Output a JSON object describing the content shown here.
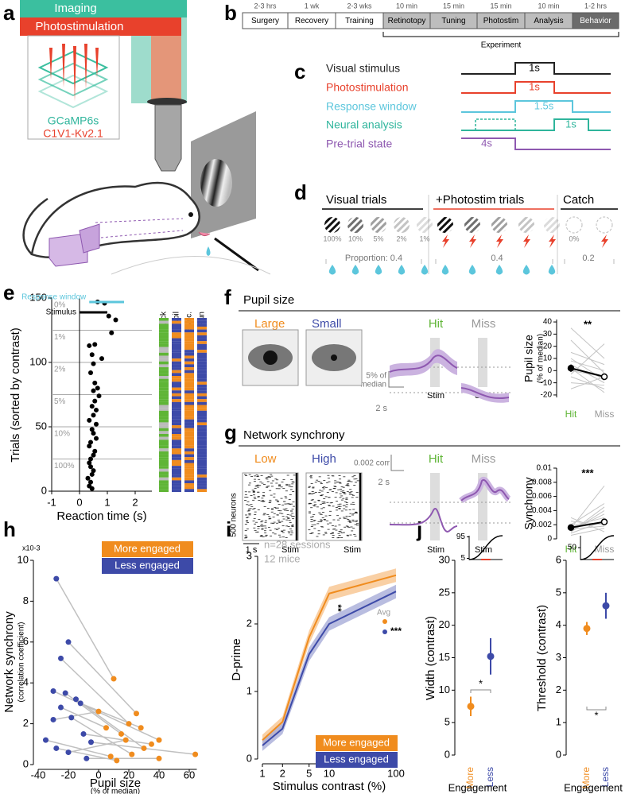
{
  "panels": {
    "a": {
      "label": "a",
      "imaging": "Imaging",
      "photostim": "Photostimulation",
      "indicator": "GCaMP6s",
      "opsin": "C1V1-Kv2.1"
    },
    "b": {
      "label": "b",
      "stages": [
        {
          "duration": "2-3 hrs",
          "name": "Surgery"
        },
        {
          "duration": "1 wk",
          "name": "Recovery"
        },
        {
          "duration": "2-3 wks",
          "name": "Training"
        },
        {
          "duration": "10 min",
          "name": "Retinotopy"
        },
        {
          "duration": "15 min",
          "name": "Tuning"
        },
        {
          "duration": "15 min",
          "name": "Photostim"
        },
        {
          "duration": "10 min",
          "name": "Analysis"
        },
        {
          "duration": "1-2 hrs",
          "name": "Behavior"
        }
      ],
      "experiment": "Experiment"
    },
    "c": {
      "label": "c",
      "rows": [
        {
          "name": "Visual stimulus",
          "duration": "1s",
          "color": "#222222"
        },
        {
          "name": "Photostimulation",
          "duration": "1s",
          "color": "#e8412c"
        },
        {
          "name": "Response window",
          "duration": "1.5s",
          "color": "#5cc6dc"
        },
        {
          "name": "Neural analysis",
          "duration": "1s",
          "color": "#2fb59c"
        },
        {
          "name": "Pre-trial state",
          "duration": "4s",
          "color": "#8e58b0"
        }
      ]
    },
    "d": {
      "label": "d",
      "groups": [
        {
          "title": "Visual trials",
          "proportion": "Proportion: 0.4",
          "contrasts": [
            "100%",
            "10%",
            "5%",
            "2%",
            "1%"
          ]
        },
        {
          "title": "+Photostim trials",
          "proportion": "0.4"
        },
        {
          "title": "Catch",
          "proportion": "0.2",
          "contrasts": [
            "0%"
          ]
        }
      ]
    },
    "e": {
      "label": "e"
    },
    "f": {
      "label": "f",
      "title": "Pupil size",
      "low": "Large",
      "high": "Small",
      "hit": "Hit",
      "miss": "Miss",
      "scale_y": [
        "5% of",
        "median"
      ],
      "scale_x": "2 s",
      "stim": [
        "Stim",
        "Stim"
      ]
    },
    "g": {
      "label": "g",
      "title": "Network synchrony",
      "low": "Low",
      "high": "High",
      "hit": "Hit",
      "miss": "Miss",
      "raster_scale_y": "500 neurons",
      "raster_scale_x": "1 s",
      "raster_stim": [
        "Stim",
        "Stim"
      ],
      "scale_y": "0.002 corr",
      "scale_x": "2 s",
      "stim": [
        "Stim",
        "Stim"
      ]
    },
    "h": {
      "label": "h"
    },
    "i": {
      "label": "i"
    },
    "j": {
      "label": "j"
    }
  },
  "chart_data": [
    {
      "type": "scatter",
      "xlabel": "Reaction time (s)",
      "ylabel": "Trials (sorted by contrast)",
      "xlim": [
        -1,
        2.6
      ],
      "ylim": [
        0,
        150
      ],
      "xticks": [
        -1,
        0,
        1,
        2
      ],
      "yticks": [
        0,
        50,
        100,
        150
      ],
      "groups": [
        {
          "label": "0%",
          "from": 125
        },
        {
          "label": "1%",
          "from": 100
        },
        {
          "label": "2%",
          "from": 75
        },
        {
          "label": "5%",
          "from": 50
        },
        {
          "label": "10%",
          "from": 25
        },
        {
          "label": "100%",
          "from": 0
        }
      ],
      "legend": [
        {
          "name": "Response window",
          "color": "#5cc6dc",
          "range": [
            0.35,
            1.6
          ]
        },
        {
          "name": "Stimulus",
          "color": "#000000",
          "range": [
            0,
            1
          ]
        }
      ],
      "columns": [
        "Lick",
        "Pupil",
        "Sync.",
        "Run"
      ],
      "color": "#000000",
      "x": [
        0.65,
        0.9,
        1.05,
        1.3,
        1.15,
        0.35,
        0.55,
        0.45,
        0.8,
        0.5,
        0.4,
        0.55,
        0.65,
        0.5,
        0.7,
        0.55,
        0.45,
        0.6,
        0.5,
        0.35,
        0.6,
        0.45,
        0.5,
        0.6,
        0.4,
        0.35,
        0.55,
        0.5,
        0.4,
        0.35,
        0.4,
        0.5,
        0.45,
        0.3,
        0.4,
        0.35,
        0.45
      ],
      "values": [
        147,
        146,
        136,
        133,
        123,
        113,
        114,
        106,
        103,
        99,
        92,
        84,
        80,
        78,
        74,
        70,
        66,
        63,
        59,
        55,
        52,
        48,
        45,
        41,
        38,
        35,
        31,
        28,
        25,
        22,
        19,
        16,
        13,
        10,
        7,
        4,
        2
      ]
    },
    {
      "type": "paired",
      "ylabel": "Pupil size",
      "ylabel2": "(% of median)",
      "categories": [
        "Hit",
        "Miss"
      ],
      "category_colors": [
        "#5fb536",
        "#999999"
      ],
      "ylim": [
        -22,
        42
      ],
      "yticks": [
        -20,
        -10,
        0,
        10,
        20,
        30,
        40
      ],
      "significance": "**",
      "color": "#c4c4c4",
      "series": [
        {
          "values": [
            25,
            -2
          ]
        },
        {
          "values": [
            10,
            -8
          ]
        },
        {
          "values": [
            5,
            -10
          ]
        },
        {
          "values": [
            0,
            -5
          ]
        },
        {
          "values": [
            -5,
            -15
          ]
        },
        {
          "values": [
            15,
            5
          ]
        },
        {
          "values": [
            -10,
            -12
          ]
        },
        {
          "values": [
            8,
            0
          ]
        },
        {
          "values": [
            -15,
            -5
          ]
        },
        {
          "values": [
            35,
            10
          ]
        },
        {
          "values": [
            2,
            -18
          ]
        },
        {
          "values": [
            -3,
            22
          ]
        }
      ],
      "average": {
        "values": [
          2,
          -5
        ],
        "errors": [
          3,
          2
        ]
      }
    },
    {
      "type": "paired",
      "ylabel": "Synchrony",
      "categories": [
        "Hit",
        "Miss"
      ],
      "category_colors": [
        "#5fb536",
        "#999999"
      ],
      "ylim": [
        0,
        0.01
      ],
      "yticks": [
        0,
        0.002,
        0.004,
        0.006,
        0.008,
        0.01
      ],
      "significance": "***",
      "color": "#c4c4c4",
      "series": [
        {
          "values": [
            0.0015,
            0.0075
          ]
        },
        {
          "values": [
            0.002,
            0.005
          ]
        },
        {
          "values": [
            0.001,
            0.004
          ]
        },
        {
          "values": [
            0.0012,
            0.0035
          ]
        },
        {
          "values": [
            0.0018,
            0.003
          ]
        },
        {
          "values": [
            0.0008,
            0.0025
          ]
        },
        {
          "values": [
            0.0025,
            0.002
          ]
        },
        {
          "values": [
            0.0014,
            0.0018
          ]
        },
        {
          "values": [
            0.003,
            0.001
          ]
        },
        {
          "values": [
            0.001,
            0.0045
          ]
        },
        {
          "values": [
            0.0005,
            0.0015
          ]
        }
      ],
      "average": {
        "values": [
          0.0016,
          0.0024
        ],
        "errors": [
          0.0002,
          0.0003
        ]
      }
    },
    {
      "type": "scatter",
      "ylabel": "Network synchrony",
      "ylabel2": "(correlation coefficient)",
      "yscale_label": "x10-3",
      "xlabel": "Pupil size",
      "xlabel2": "(% of median)",
      "xlim": [
        -40,
        65
      ],
      "ylim": [
        0,
        10
      ],
      "xticks": [
        -40,
        -20,
        0,
        20,
        40,
        60
      ],
      "yticks": [
        0,
        2,
        4,
        6,
        8,
        10
      ],
      "pair_color": "#c0c0c0",
      "series": [
        {
          "name": "More engaged",
          "color": "#f08c1e",
          "x": [
            10,
            25,
            20,
            40,
            15,
            30,
            5,
            22,
            8,
            35,
            12,
            64,
            18,
            28,
            40,
            0
          ],
          "values": [
            4.2,
            2.5,
            2.0,
            1.2,
            1.5,
            0.8,
            1.8,
            0.5,
            0.4,
            1.0,
            0.2,
            0.5,
            1.2,
            1.8,
            0.3,
            2.6
          ]
        },
        {
          "name": "Less engaged",
          "color": "#3d4aa8",
          "x": [
            -28,
            -20,
            -25,
            -30,
            -22,
            -15,
            -25,
            -18,
            -35,
            -10,
            -28,
            -5,
            -20,
            -12,
            -8,
            -30
          ],
          "values": [
            9.1,
            6.0,
            5.2,
            3.6,
            3.5,
            3.2,
            2.8,
            2.3,
            1.2,
            1.5,
            0.8,
            1.1,
            0.6,
            3.0,
            0.3,
            2.2
          ]
        }
      ]
    },
    {
      "type": "line",
      "xlabel": "Stimulus contrast (%)",
      "ylabel": "D-prime",
      "log_x": true,
      "xlim": [
        1,
        100
      ],
      "ylim": [
        0,
        3
      ],
      "xticks": [
        1,
        2,
        5,
        10,
        100
      ],
      "yticks": [
        0,
        1,
        2,
        3
      ],
      "x": [
        1,
        2,
        5,
        10,
        100
      ],
      "annotations": [
        "n=28 sessions",
        "12 mice",
        "Avg",
        "***",
        "**"
      ],
      "series": [
        {
          "name": "More engaged",
          "color": "#f08c1e",
          "values": [
            0.28,
            0.55,
            1.8,
            2.45,
            2.72
          ],
          "errors": [
            0.08,
            0.08,
            0.1,
            0.1,
            0.1
          ]
        },
        {
          "name": "Less engaged",
          "color": "#3d4aa8",
          "values": [
            0.2,
            0.45,
            1.55,
            2.0,
            2.48
          ],
          "errors": [
            0.08,
            0.08,
            0.1,
            0.1,
            0.1
          ]
        }
      ]
    },
    {
      "type": "errorbar",
      "ylabel": "Width (contrast)",
      "xlabel": "Engagement",
      "categories": [
        "More",
        "Less"
      ],
      "colors": [
        "#f08c1e",
        "#3d4aa8"
      ],
      "ylim": [
        0,
        30
      ],
      "yticks": [
        0,
        5,
        10,
        15,
        20,
        25,
        30
      ],
      "values": [
        7.5,
        15.2
      ],
      "errors": [
        1.5,
        2.8
      ],
      "significance": "*",
      "inset_ticks": [
        95,
        5
      ]
    },
    {
      "type": "errorbar",
      "ylabel": "Threshold (contrast)",
      "xlabel": "Engagement",
      "categories": [
        "More",
        "Less"
      ],
      "colors": [
        "#f08c1e",
        "#3d4aa8"
      ],
      "ylim": [
        0,
        6
      ],
      "yticks": [
        0,
        1,
        2,
        3,
        4,
        5,
        6
      ],
      "values": [
        3.9,
        4.6
      ],
      "errors": [
        0.2,
        0.4
      ],
      "significance": "*",
      "inset_ticks": [
        50
      ]
    }
  ]
}
